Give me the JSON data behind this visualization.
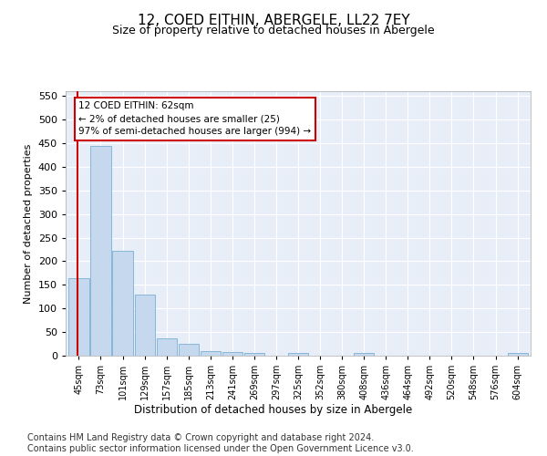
{
  "title": "12, COED EITHIN, ABERGELE, LL22 7EY",
  "subtitle": "Size of property relative to detached houses in Abergele",
  "xlabel": "Distribution of detached houses by size in Abergele",
  "ylabel": "Number of detached properties",
  "categories": [
    "45sqm",
    "73sqm",
    "101sqm",
    "129sqm",
    "157sqm",
    "185sqm",
    "213sqm",
    "241sqm",
    "269sqm",
    "297sqm",
    "325sqm",
    "352sqm",
    "380sqm",
    "408sqm",
    "436sqm",
    "464sqm",
    "492sqm",
    "520sqm",
    "548sqm",
    "576sqm",
    "604sqm"
  ],
  "values": [
    165,
    445,
    222,
    130,
    37,
    25,
    10,
    7,
    6,
    0,
    5,
    0,
    0,
    5,
    0,
    0,
    0,
    0,
    0,
    0,
    5
  ],
  "bar_color": "#c5d8ee",
  "bar_edge_color": "#7bafd4",
  "marker_color": "#cc0000",
  "annotation_text": "12 COED EITHIN: 62sqm\n← 2% of detached houses are smaller (25)\n97% of semi-detached houses are larger (994) →",
  "annotation_box_color": "#ffffff",
  "annotation_box_edge": "#cc0000",
  "background_color": "#e8eef8",
  "ylim": [
    0,
    560
  ],
  "yticks": [
    0,
    50,
    100,
    150,
    200,
    250,
    300,
    350,
    400,
    450,
    500,
    550
  ],
  "footer": "Contains HM Land Registry data © Crown copyright and database right 2024.\nContains public sector information licensed under the Open Government Licence v3.0.",
  "title_fontsize": 11,
  "subtitle_fontsize": 9,
  "xlabel_fontsize": 8.5,
  "ylabel_fontsize": 8,
  "footer_fontsize": 7
}
